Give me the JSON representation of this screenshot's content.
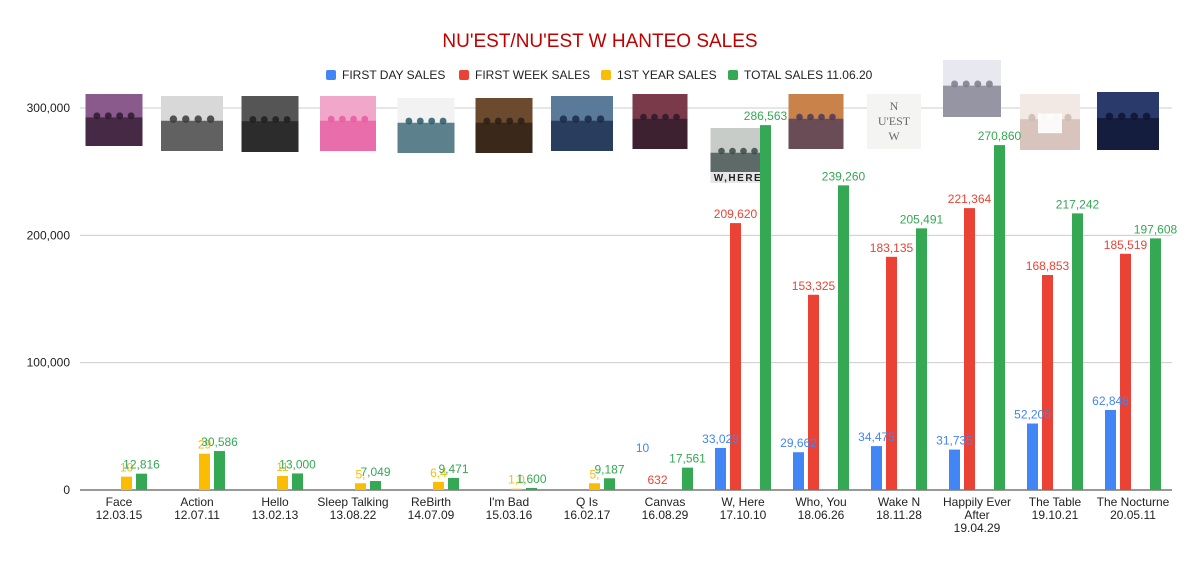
{
  "chart_data": {
    "type": "bar",
    "title": "NU'EST/NU'EST W HANTEO SALES",
    "xlabel": "",
    "ylabel": "",
    "ylim": [
      0,
      300000
    ],
    "yticks": [
      0,
      100000,
      200000,
      300000
    ],
    "ytick_labels": [
      "0",
      "100,000",
      "200,000",
      "300,000"
    ],
    "grid": true,
    "legend_position": "top",
    "categories": [
      [
        "Face",
        "12.03.15"
      ],
      [
        "Action",
        "12.07.11"
      ],
      [
        "Hello",
        "13.02.13"
      ],
      [
        "Sleep Talking",
        "13.08.22"
      ],
      [
        "ReBirth",
        "14.07.09"
      ],
      [
        "I'm Bad",
        "15.03.16"
      ],
      [
        "Q Is",
        "16.02.17"
      ],
      [
        "Canvas",
        "16.08.29"
      ],
      [
        "W, Here",
        "17.10.10"
      ],
      [
        "Who, You",
        "18.06.26"
      ],
      [
        "Wake N",
        "18.11.28"
      ],
      [
        "Happily Ever",
        "After",
        "19.04.29"
      ],
      [
        "The Table",
        "19.10.21"
      ],
      [
        "The Nocturne",
        "20.05.11"
      ]
    ],
    "series": [
      {
        "name": "FIRST DAY SALES",
        "color": "#4285f4",
        "values": [
          null,
          null,
          null,
          null,
          null,
          null,
          null,
          null,
          33029,
          29662,
          34475,
          31735,
          52206,
          62848
        ],
        "labels": [
          "",
          "",
          "",
          "",
          "",
          "",
          "",
          "",
          "33,029",
          "29,662",
          "34,475",
          "31,735",
          "52,206",
          "62,848"
        ]
      },
      {
        "name": "FIRST WEEK SALES",
        "color": "#ea4335",
        "values": [
          null,
          null,
          null,
          null,
          null,
          null,
          null,
          632,
          209620,
          153325,
          183135,
          221364,
          168853,
          185519
        ],
        "labels": [
          "",
          "",
          "",
          "",
          "",
          "",
          "",
          "632",
          "209,620",
          "153,325",
          "183,135",
          "221,364",
          "168,853",
          "185,519"
        ]
      },
      {
        "name": "1ST YEAR SALES",
        "color": "#fbbc04",
        "values": [
          10500,
          28500,
          11000,
          5300,
          6400,
          1000,
          5300,
          null,
          null,
          null,
          null,
          null,
          null,
          null
        ],
        "labels": [
          "10",
          "29",
          "11",
          "5,",
          "6,4",
          "1,0",
          "5,",
          "",
          "",
          "",
          "",
          "",
          "",
          ""
        ]
      },
      {
        "name": "TOTAL SALES 11.06.20",
        "color": "#34a853",
        "values": [
          12816,
          30586,
          13000,
          7049,
          9471,
          1600,
          9187,
          17561,
          286563,
          239260,
          205491,
          270860,
          217242,
          197608
        ],
        "labels": [
          "12,816",
          "30,586",
          "13,000",
          "7,049",
          "9,471",
          "1,600",
          "9,187",
          "17,561",
          "286,563",
          "239,260",
          "205,491",
          "270,860",
          "217,242",
          "197,608"
        ]
      }
    ],
    "first_day_extra_labels": [
      "",
      "",
      "",
      "",
      "",
      "",
      "",
      "10",
      "",
      "",
      "",
      "",
      "",
      ""
    ],
    "album_cover_icons": [
      "face-cover-icon",
      "action-cover-icon",
      "hello-cover-icon",
      "sleep-talking-cover-icon",
      "rebirth-cover-icon",
      "im-bad-cover-icon",
      "q-is-cover-icon",
      "canvas-cover-icon",
      "w-here-cover-icon",
      "who-you-cover-icon",
      "wake-n-cover-icon",
      "happily-ever-after-cover-icon",
      "the-table-cover-icon",
      "the-nocturne-cover-icon"
    ],
    "cover_texts": {
      "w_here": "W,HERE",
      "wake_n": [
        "N",
        "U'EST",
        "W"
      ]
    }
  }
}
